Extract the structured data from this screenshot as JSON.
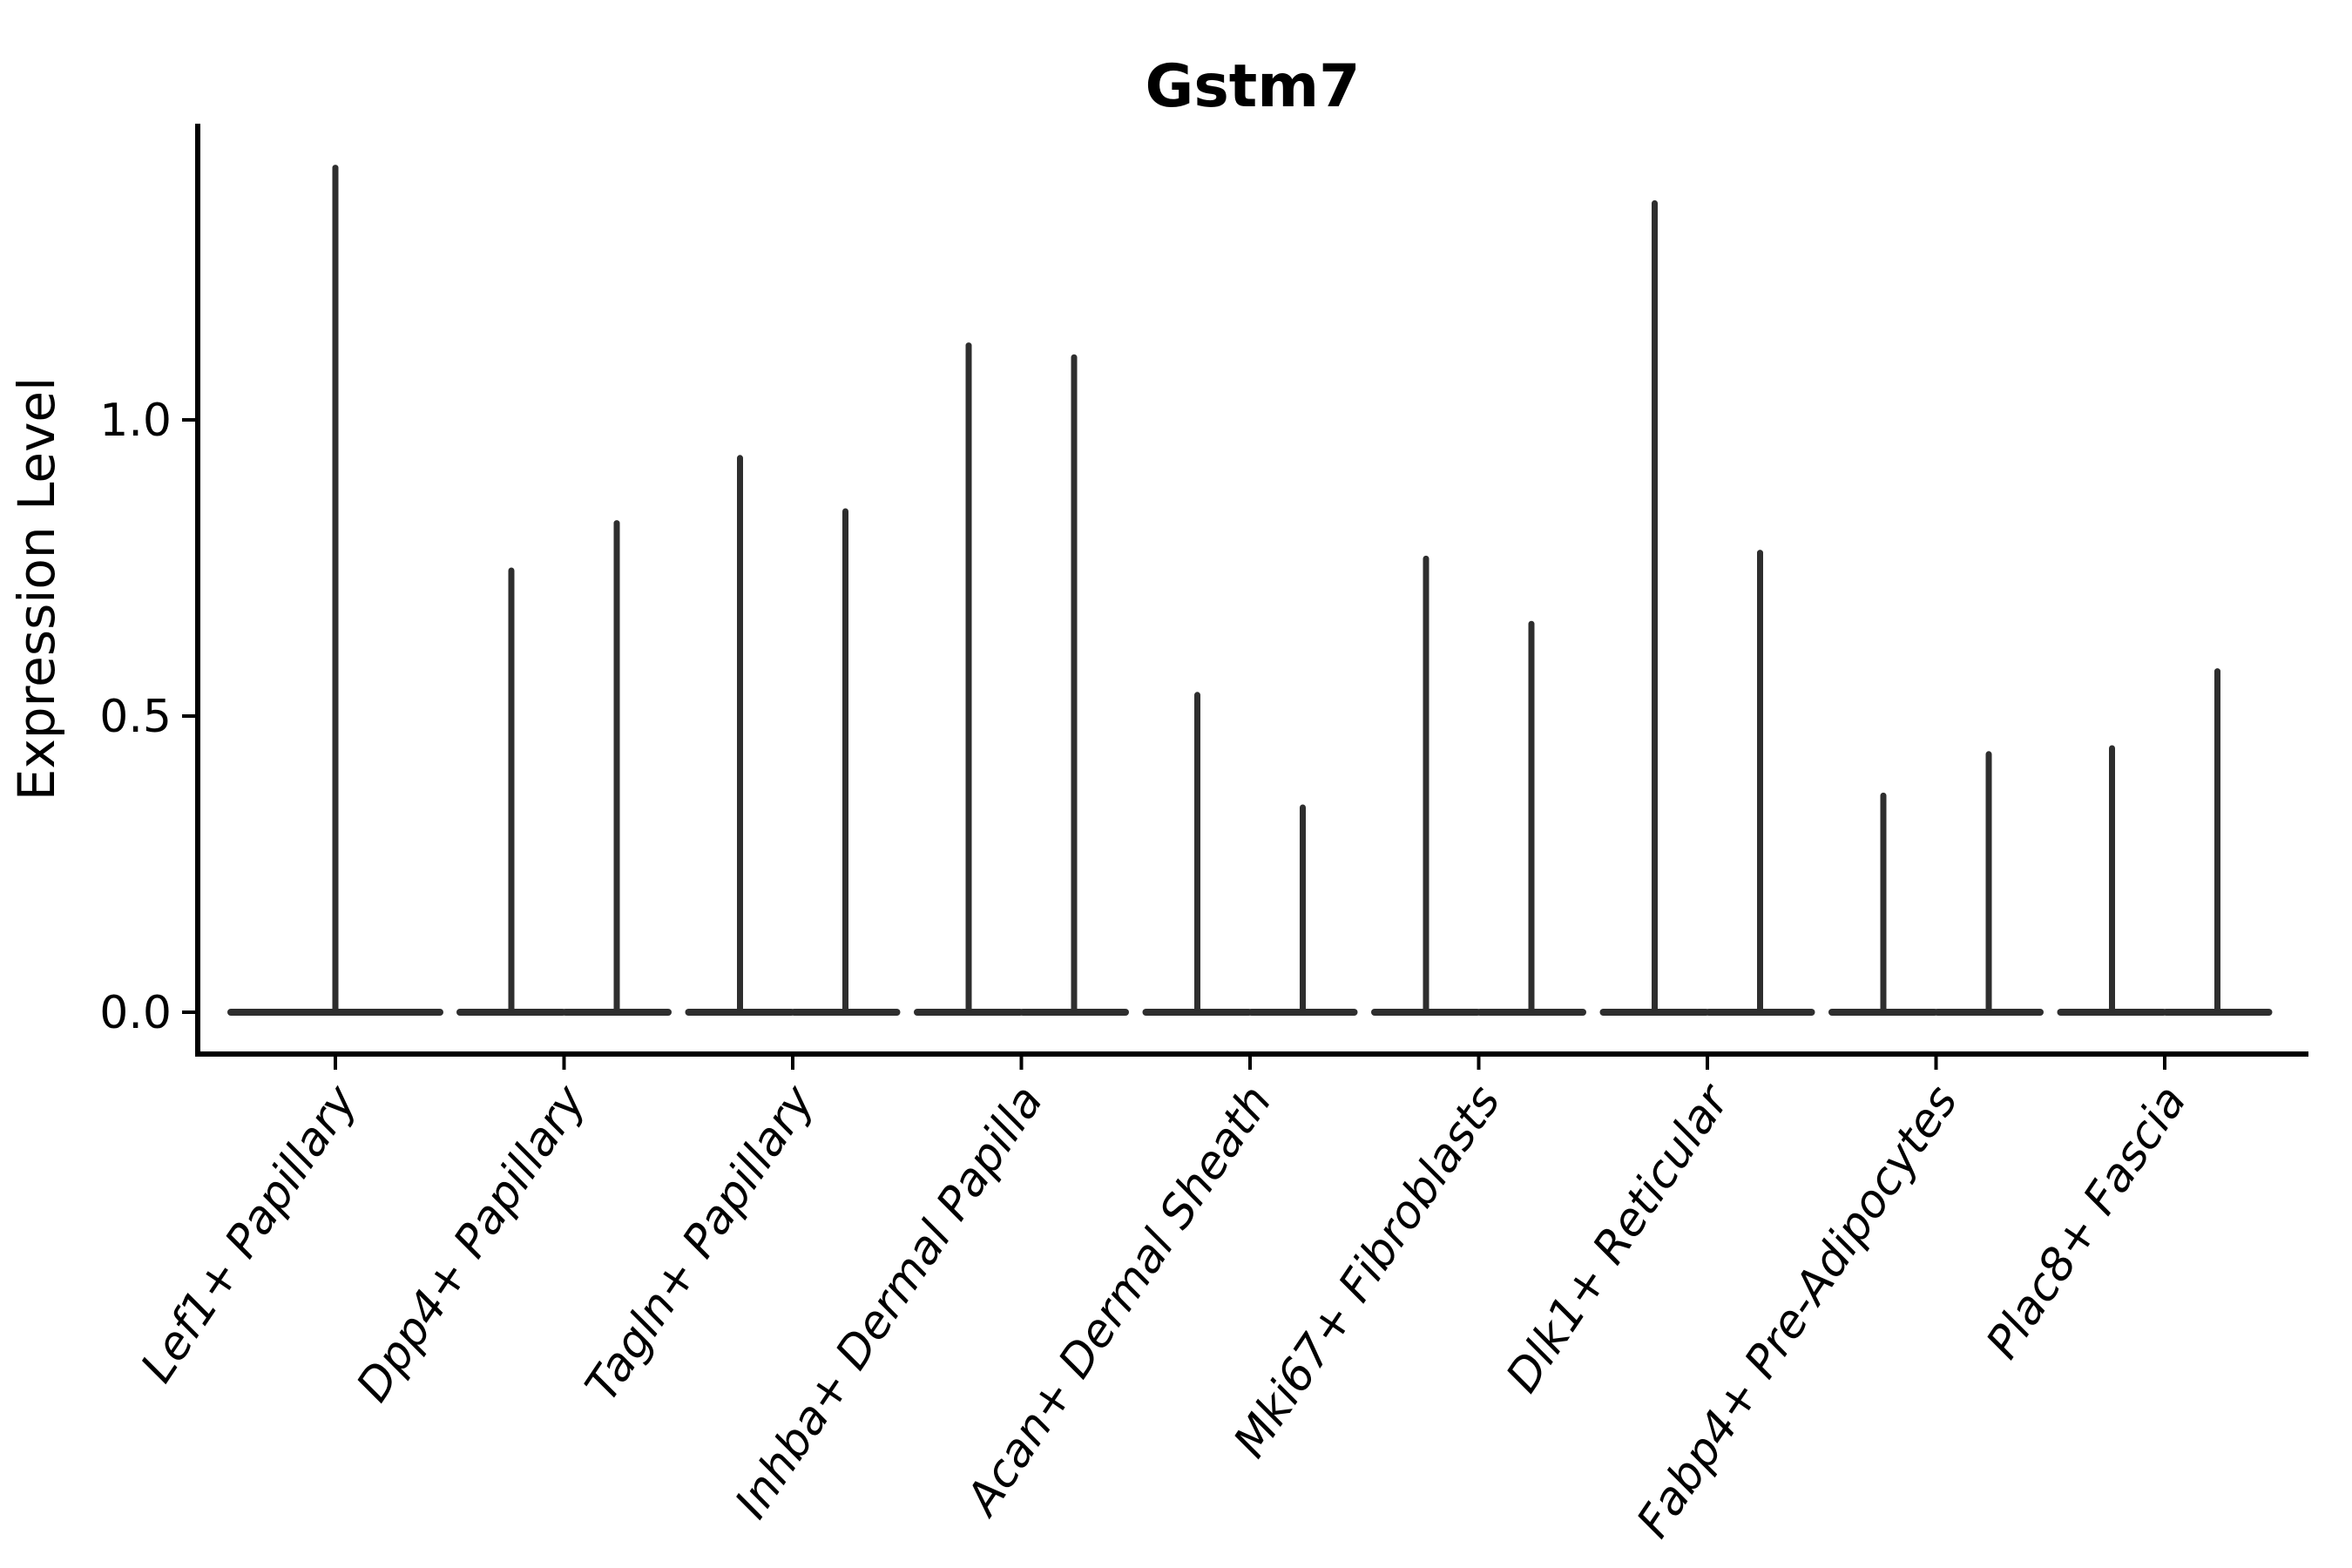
{
  "chart_data": {
    "type": "violin",
    "title": "Gstm7",
    "xlabel": "",
    "ylabel": "Expression Level",
    "categories": [
      "Lef1+ Papillary",
      "Dpp4+ Papillary",
      "Tagln+ Papillary",
      "Inhba+ Dermal Papilla",
      "Acan+ Dermal Sheath",
      "Mki67+ Fibroblasts",
      "Dlk1+ Reticular",
      "Fabp4+ Pre-Adipocytes",
      "Plac8+ Fascia"
    ],
    "series": [
      {
        "category": "Lef1+ Papillary",
        "violin_peaks": [
          1.43
        ],
        "violin_floor": 0.0
      },
      {
        "category": "Dpp4+ Papillary",
        "violin_peaks": [
          0.75,
          0.83
        ],
        "violin_floor": 0.0
      },
      {
        "category": "Tagln+ Papillary",
        "violin_peaks": [
          0.94,
          0.85
        ],
        "violin_floor": 0.0
      },
      {
        "category": "Inhba+ Dermal Papilla",
        "violin_peaks": [
          1.13,
          1.11
        ],
        "violin_floor": 0.0
      },
      {
        "category": "Acan+ Dermal Sheath",
        "violin_peaks": [
          0.54,
          0.35
        ],
        "violin_floor": 0.0
      },
      {
        "category": "Mki67+ Fibroblasts",
        "violin_peaks": [
          0.77,
          0.66
        ],
        "violin_floor": 0.0
      },
      {
        "category": "Dlk1+ Reticular",
        "violin_peaks": [
          1.37,
          0.78
        ],
        "violin_floor": 0.0
      },
      {
        "category": "Fabp4+ Pre-Adipocytes",
        "violin_peaks": [
          0.37,
          0.44
        ],
        "violin_floor": 0.0
      },
      {
        "category": "Plac8+ Fascia",
        "violin_peaks": [
          0.45,
          0.58
        ],
        "violin_floor": 0.0
      }
    ],
    "ytick_labels": [
      "0.0",
      "0.5",
      "1.0"
    ],
    "ytick_values": [
      0.0,
      0.5,
      1.0
    ],
    "ylim": [
      -0.07,
      1.5
    ],
    "grid": false,
    "legend_position": "none",
    "colors": {
      "violin_line": "#2e2e2e",
      "axis": "#000000",
      "text": "#000000",
      "background": "#ffffff"
    }
  }
}
